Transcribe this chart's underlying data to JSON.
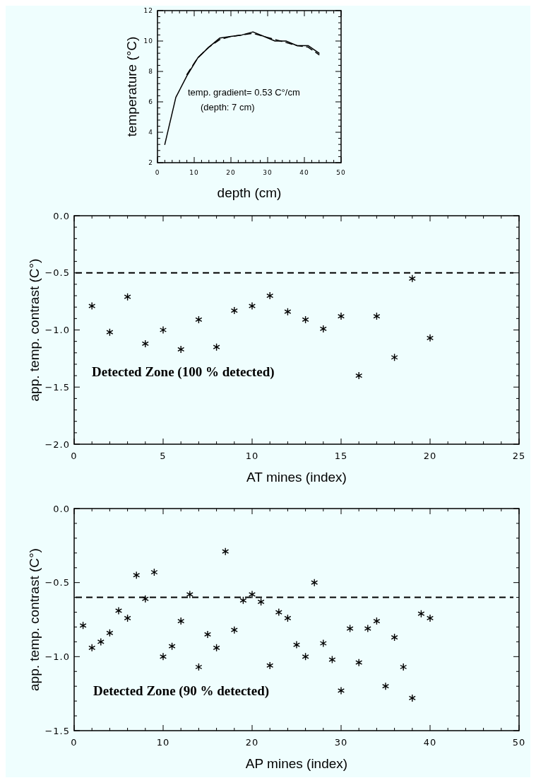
{
  "chart_data": [
    {
      "type": "line",
      "xlabel": "depth (cm)",
      "ylabel": "temperature (°C)",
      "xlim": [
        0,
        50
      ],
      "xticks": [
        0,
        10,
        20,
        30,
        40,
        50
      ],
      "ylim": [
        2,
        12
      ],
      "yticks": [
        2,
        4,
        6,
        8,
        10,
        12
      ],
      "grid": false,
      "marker": "none",
      "annotations": [
        "temp. gradient= 0.53 C°/cm",
        "(depth: 7 cm)"
      ],
      "series": [
        {
          "color": "#000000",
          "line_style": "solid",
          "x": [
            2,
            5,
            8,
            11,
            14,
            17,
            20,
            23,
            26,
            29,
            32,
            35,
            38,
            41,
            44
          ],
          "values": [
            3.2,
            6.3,
            7.7,
            8.9,
            9.6,
            10.2,
            10.3,
            10.4,
            10.6,
            10.3,
            10.0,
            10.0,
            9.7,
            9.7,
            9.2
          ]
        },
        {
          "color": "#000000",
          "line_style": "dashed",
          "x": [
            8,
            11,
            14,
            17,
            20,
            23,
            26,
            29,
            32,
            35,
            38,
            41,
            44
          ],
          "values": [
            7.8,
            8.9,
            9.6,
            10.1,
            10.3,
            10.4,
            10.5,
            10.3,
            10.1,
            9.9,
            9.7,
            9.6,
            9.1
          ]
        }
      ]
    },
    {
      "type": "scatter",
      "xlabel": "AT mines (index)",
      "ylabel": "app. temp. contrast (C°)",
      "xlim": [
        0,
        25
      ],
      "xticks": [
        0,
        5,
        10,
        15,
        20,
        25
      ],
      "ylim": [
        -2,
        0
      ],
      "yticks": [
        {
          "value": -2,
          "label": "−2.0"
        },
        {
          "value": -1.5,
          "label": "−1.5"
        },
        {
          "value": -1,
          "label": "−1.0"
        },
        {
          "value": -0.5,
          "label": "−0.5"
        },
        {
          "value": 0,
          "label": "0.0"
        }
      ],
      "grid": false,
      "marker": "cross",
      "annotations": [
        "Detected Zone (100 % detected)"
      ],
      "ref_lines": [
        {
          "axis": "y",
          "value": -0.5,
          "line_style": "dashed",
          "color": "#000000"
        }
      ],
      "series": [
        {
          "color": "#000000",
          "x": [
            1,
            2,
            3,
            4,
            5,
            6,
            7,
            8,
            9,
            10,
            11,
            12,
            13,
            14,
            15,
            16,
            17,
            18,
            19,
            20
          ],
          "values": [
            -0.79,
            -1.02,
            -0.71,
            -1.12,
            -1.0,
            -1.17,
            -0.91,
            -1.15,
            -0.83,
            -0.79,
            -0.7,
            -0.84,
            -0.91,
            -0.99,
            -0.88,
            -1.4,
            -0.88,
            -1.24,
            -0.55,
            -1.07
          ]
        }
      ]
    },
    {
      "type": "scatter",
      "xlabel": "AP mines (index)",
      "ylabel": "app. temp. contrast (C°)",
      "xlim": [
        0,
        50
      ],
      "xticks": [
        0,
        10,
        20,
        30,
        40,
        50
      ],
      "ylim": [
        -1.5,
        0
      ],
      "yticks": [
        {
          "value": -1.5,
          "label": "−1.5"
        },
        {
          "value": -1,
          "label": "−1.0"
        },
        {
          "value": -0.5,
          "label": "−0.5"
        },
        {
          "value": 0,
          "label": "0.0"
        }
      ],
      "grid": false,
      "marker": "cross",
      "annotations": [
        "Detected Zone (90 % detected)"
      ],
      "ref_lines": [
        {
          "axis": "y",
          "value": -0.6,
          "line_style": "dashed",
          "color": "#000000"
        }
      ],
      "series": [
        {
          "color": "#000000",
          "x": [
            1,
            2,
            3,
            4,
            5,
            6,
            7,
            8,
            9,
            10,
            11,
            12,
            13,
            14,
            15,
            16,
            17,
            18,
            19,
            20,
            21,
            22,
            23,
            24,
            25,
            26,
            27,
            28,
            29,
            30,
            31,
            32,
            33,
            34,
            35,
            36,
            37,
            38,
            39,
            40
          ],
          "values": [
            -0.79,
            -0.94,
            -0.9,
            -0.84,
            -0.69,
            -0.74,
            -0.45,
            -0.61,
            -0.43,
            -1.0,
            -0.93,
            -0.76,
            -0.58,
            -1.07,
            -0.85,
            -0.94,
            -0.29,
            -0.82,
            -0.62,
            -0.58,
            -0.63,
            -1.06,
            -0.7,
            -0.74,
            -0.92,
            -1.0,
            -0.5,
            -0.91,
            -1.02,
            -1.23,
            -0.81,
            -1.04,
            -0.81,
            -0.76,
            -1.2,
            -0.87,
            -1.07,
            -1.28,
            -0.71,
            -0.74
          ]
        }
      ]
    }
  ]
}
